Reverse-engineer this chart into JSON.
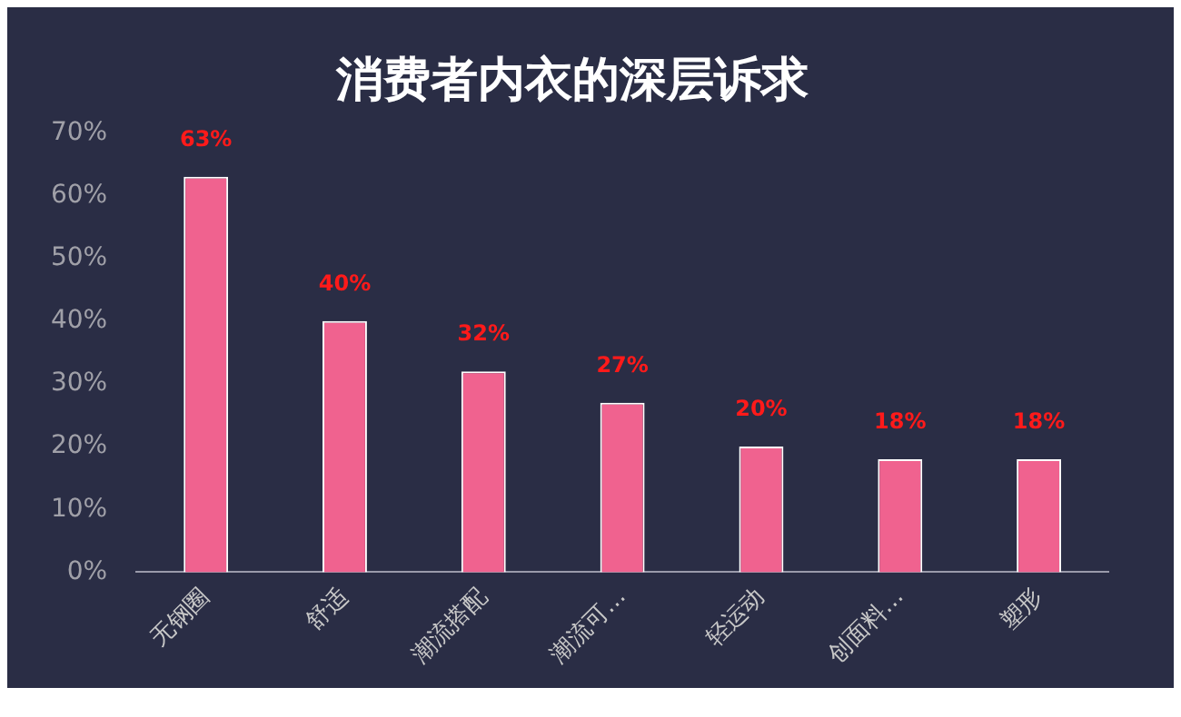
{
  "chart_data": {
    "type": "bar",
    "title": "消费者内衣的深层诉求",
    "categories": [
      "无钢圈",
      "舒适",
      "潮流搭配",
      "潮流可…",
      "轻运动",
      "创面料…",
      "塑形"
    ],
    "values": [
      63,
      40,
      32,
      27,
      20,
      18,
      18
    ],
    "value_labels": [
      "63%",
      "40%",
      "32%",
      "27%",
      "20%",
      "18%",
      "18%"
    ],
    "color": "#f0628f",
    "ylim": [
      0,
      70
    ],
    "yticks": [
      {
        "value": 0,
        "label": "0%"
      },
      {
        "value": 10,
        "label": "10%"
      },
      {
        "value": 20,
        "label": "20%"
      },
      {
        "value": 30,
        "label": "30%"
      },
      {
        "value": 40,
        "label": "40%"
      },
      {
        "value": 50,
        "label": "50%"
      },
      {
        "value": 60,
        "label": "60%"
      },
      {
        "value": 70,
        "label": "70%"
      }
    ],
    "grid": false,
    "legend": false
  }
}
